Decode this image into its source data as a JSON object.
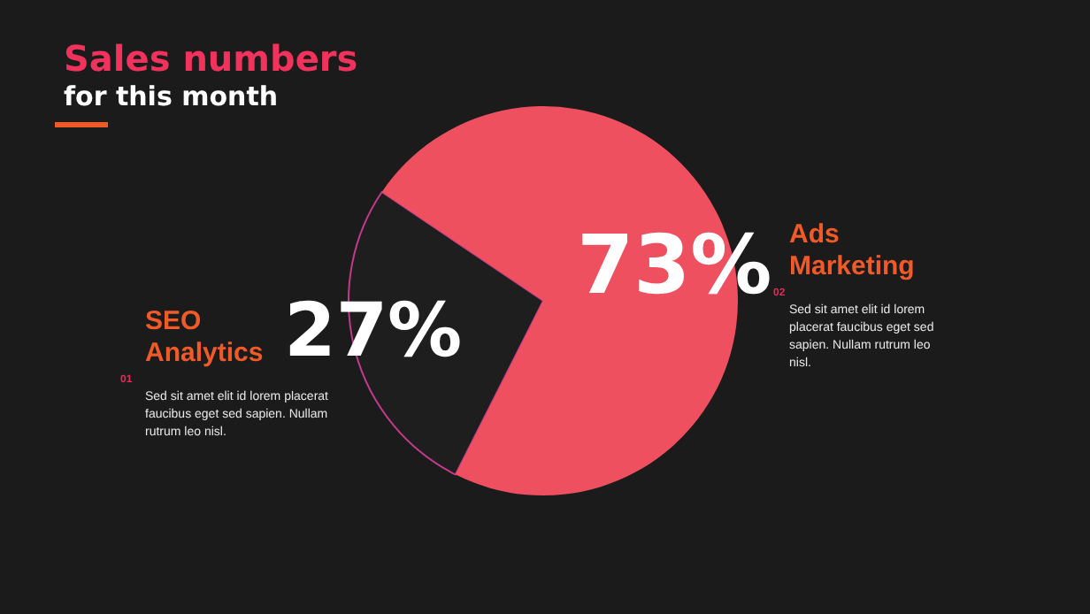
{
  "chart_data": {
    "type": "pie",
    "title": "Sales numbers",
    "subtitle": "for this month",
    "categories": [
      "SEO Analytics",
      "Ads Marketing"
    ],
    "values": [
      27,
      73
    ],
    "value_labels": [
      "27%",
      "73%"
    ],
    "colors": [
      "#1e1e1e",
      "#ee5060"
    ],
    "annotations": [
      "01",
      "Sed sit amet elit id lorem placerat faucibus eget sed sapien. Nullam rutrum leo nisl.",
      "02",
      "Sed sit amet elit id lorem placerat faucibus eget sed sapien. Nullam rutrum leo nisl."
    ]
  }
}
